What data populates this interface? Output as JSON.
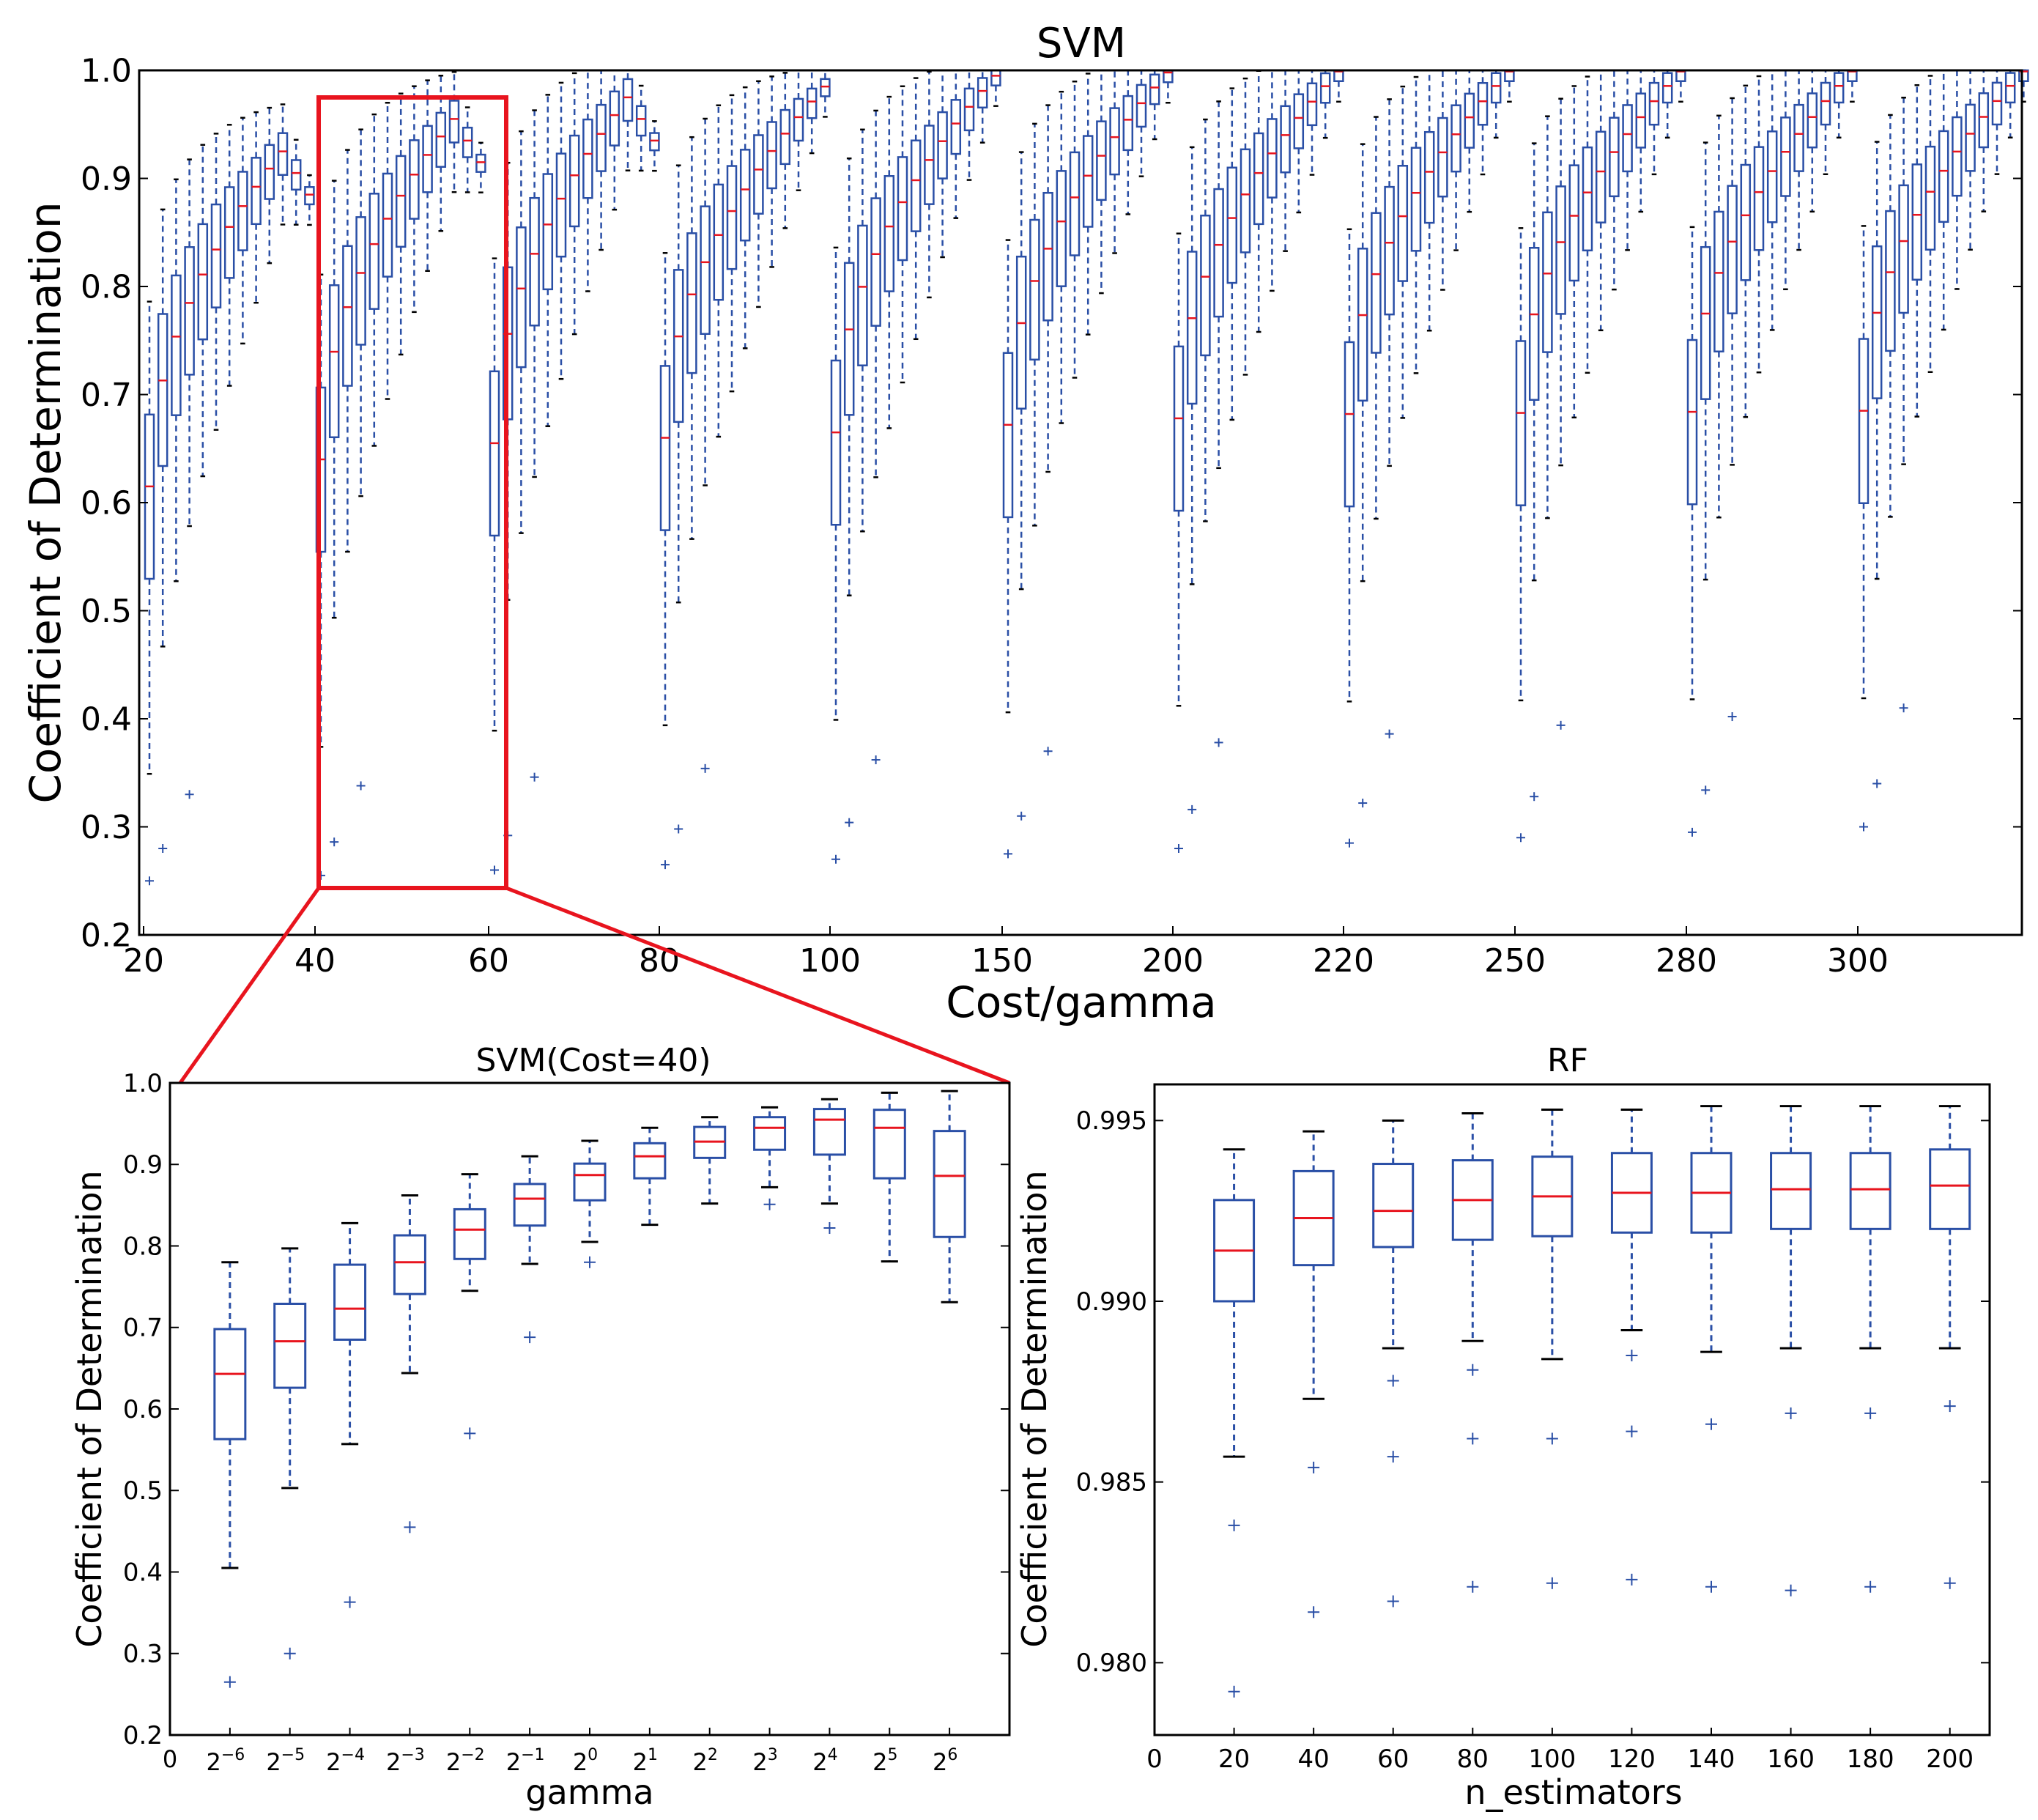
{
  "chart_data": [
    {
      "id": "svm",
      "type": "box",
      "title": "SVM",
      "xlabel": "Cost/gamma",
      "ylabel": "Coefficient of Determination",
      "ylim": [
        0.2,
        1.0
      ],
      "yticks": [
        "0.2",
        "0.3",
        "0.4",
        "0.5",
        "0.6",
        "0.7",
        "0.8",
        "0.9",
        "1.0"
      ],
      "xticks": [
        "20",
        "40",
        "60",
        "80",
        "100",
        "150",
        "200",
        "220",
        "250",
        "280",
        "300"
      ],
      "groups_count": 11,
      "boxes_per_group": 13,
      "group_medians_start": [
        0.615,
        0.64,
        0.655,
        0.66,
        0.665,
        0.672,
        0.678,
        0.682,
        0.683,
        0.684,
        0.685
      ],
      "group_medians_peak": [
        0.925,
        0.955,
        0.975,
        0.985,
        0.995,
        0.998,
        0.999,
        0.999,
        0.999,
        0.999,
        0.999
      ],
      "highlight": {
        "group": "Cost=40",
        "color": "#e8141e"
      }
    },
    {
      "id": "svm_cost40",
      "type": "box",
      "title": "SVM(Cost=40)",
      "xlabel": "gamma",
      "ylabel": "Coefficient of Determination",
      "ylim": [
        0.2,
        1.0
      ],
      "yticks": [
        "0.2",
        "0.3",
        "0.4",
        "0.5",
        "0.6",
        "0.7",
        "0.8",
        "0.9",
        "1.0"
      ],
      "xtick_zero": "0",
      "xticks": [
        {
          "base": "2",
          "exp": "−6"
        },
        {
          "base": "2",
          "exp": "−5"
        },
        {
          "base": "2",
          "exp": "−4"
        },
        {
          "base": "2",
          "exp": "−3"
        },
        {
          "base": "2",
          "exp": "−2"
        },
        {
          "base": "2",
          "exp": "−1"
        },
        {
          "base": "2",
          "exp": "0"
        },
        {
          "base": "2",
          "exp": "1"
        },
        {
          "base": "2",
          "exp": "2"
        },
        {
          "base": "2",
          "exp": "3"
        },
        {
          "base": "2",
          "exp": "4"
        },
        {
          "base": "2",
          "exp": "5"
        },
        {
          "base": "2",
          "exp": "6"
        }
      ],
      "boxes": [
        {
          "q1": 0.563,
          "median": 0.643,
          "q3": 0.698,
          "lo": 0.405,
          "hi": 0.78,
          "fliers": [
            0.265
          ]
        },
        {
          "q1": 0.626,
          "median": 0.683,
          "q3": 0.729,
          "lo": 0.503,
          "hi": 0.797,
          "fliers": [
            0.3
          ]
        },
        {
          "q1": 0.685,
          "median": 0.723,
          "q3": 0.777,
          "lo": 0.557,
          "hi": 0.828,
          "fliers": [
            0.363
          ]
        },
        {
          "q1": 0.741,
          "median": 0.78,
          "q3": 0.813,
          "lo": 0.644,
          "hi": 0.862,
          "fliers": [
            0.455
          ]
        },
        {
          "q1": 0.784,
          "median": 0.82,
          "q3": 0.845,
          "lo": 0.745,
          "hi": 0.888,
          "fliers": [
            0.57
          ]
        },
        {
          "q1": 0.825,
          "median": 0.858,
          "q3": 0.876,
          "lo": 0.778,
          "hi": 0.91,
          "fliers": [
            0.688
          ]
        },
        {
          "q1": 0.856,
          "median": 0.887,
          "q3": 0.901,
          "lo": 0.805,
          "hi": 0.929,
          "fliers": [
            0.78
          ]
        },
        {
          "q1": 0.883,
          "median": 0.91,
          "q3": 0.926,
          "lo": 0.826,
          "hi": 0.945,
          "fliers": []
        },
        {
          "q1": 0.908,
          "median": 0.928,
          "q3": 0.946,
          "lo": 0.852,
          "hi": 0.958,
          "fliers": []
        },
        {
          "q1": 0.918,
          "median": 0.945,
          "q3": 0.958,
          "lo": 0.872,
          "hi": 0.97,
          "fliers": [
            0.851
          ]
        },
        {
          "q1": 0.912,
          "median": 0.955,
          "q3": 0.968,
          "lo": 0.852,
          "hi": 0.98,
          "fliers": [
            0.822
          ]
        },
        {
          "q1": 0.883,
          "median": 0.945,
          "q3": 0.967,
          "lo": 0.781,
          "hi": 0.988,
          "fliers": []
        },
        {
          "q1": 0.811,
          "median": 0.886,
          "q3": 0.941,
          "lo": 0.731,
          "hi": 0.99,
          "fliers": []
        }
      ]
    },
    {
      "id": "rf",
      "type": "box",
      "title": "RF",
      "xlabel": "n_estimators",
      "ylabel": "Coefficient of Determination",
      "ylim": [
        0.978,
        0.996
      ],
      "yticks": [
        "0.980",
        "0.985",
        "0.990",
        "0.995"
      ],
      "xticks": [
        "0",
        "20",
        "40",
        "60",
        "80",
        "100",
        "120",
        "140",
        "160",
        "180",
        "200"
      ],
      "boxes": [
        {
          "x": 20,
          "q1": 0.99,
          "median": 0.9914,
          "q3": 0.9928,
          "lo": 0.9857,
          "hi": 0.9942,
          "fliers": [
            0.9838,
            0.9792
          ]
        },
        {
          "x": 40,
          "q1": 0.991,
          "median": 0.9923,
          "q3": 0.9936,
          "lo": 0.9873,
          "hi": 0.9947,
          "fliers": [
            0.9854,
            0.9814
          ]
        },
        {
          "x": 60,
          "q1": 0.9915,
          "median": 0.9925,
          "q3": 0.9938,
          "lo": 0.9887,
          "hi": 0.995,
          "fliers": [
            0.9878,
            0.9857,
            0.9817
          ]
        },
        {
          "x": 80,
          "q1": 0.9917,
          "median": 0.9928,
          "q3": 0.9939,
          "lo": 0.9889,
          "hi": 0.9952,
          "fliers": [
            0.9881,
            0.9862,
            0.9821
          ]
        },
        {
          "x": 100,
          "q1": 0.9918,
          "median": 0.9929,
          "q3": 0.994,
          "lo": 0.9884,
          "hi": 0.9953,
          "fliers": [
            0.9862,
            0.9822
          ]
        },
        {
          "x": 120,
          "q1": 0.9919,
          "median": 0.993,
          "q3": 0.9941,
          "lo": 0.9892,
          "hi": 0.9953,
          "fliers": [
            0.9885,
            0.9864,
            0.9823
          ]
        },
        {
          "x": 140,
          "q1": 0.9919,
          "median": 0.993,
          "q3": 0.9941,
          "lo": 0.9886,
          "hi": 0.9954,
          "fliers": [
            0.9866,
            0.9821
          ]
        },
        {
          "x": 160,
          "q1": 0.992,
          "median": 0.9931,
          "q3": 0.9941,
          "lo": 0.9887,
          "hi": 0.9954,
          "fliers": [
            0.9869,
            0.982
          ]
        },
        {
          "x": 180,
          "q1": 0.992,
          "median": 0.9931,
          "q3": 0.9941,
          "lo": 0.9887,
          "hi": 0.9954,
          "fliers": [
            0.9869,
            0.9821
          ]
        },
        {
          "x": 200,
          "q1": 0.992,
          "median": 0.9932,
          "q3": 0.9942,
          "lo": 0.9887,
          "hi": 0.9954,
          "fliers": [
            0.9871,
            0.9822
          ]
        }
      ]
    }
  ],
  "colors": {
    "box": "#2a4fa6",
    "median": "#e8141e",
    "highlight": "#e8141e",
    "axis": "#000000"
  }
}
